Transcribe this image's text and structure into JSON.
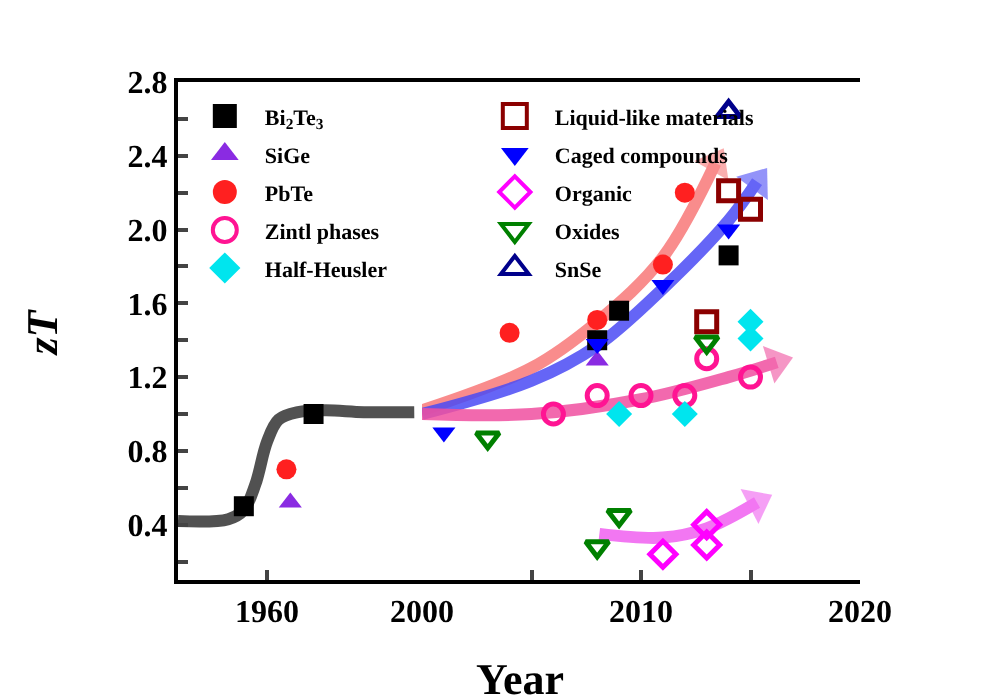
{
  "chart_data": [
    {
      "type": "scatter",
      "ylabel": "zT",
      "xlim": [
        1937,
        2000
      ],
      "xticks": [
        1960,
        2000
      ],
      "ylim": [
        0.1,
        2.8
      ],
      "yticks": [
        {
          "value": 0.2,
          "label": null
        },
        0.4,
        {
          "value": 0.6,
          "label": null
        },
        0.8,
        {
          "value": 1.0,
          "label": null
        },
        1.2,
        {
          "value": 1.4,
          "label": null
        },
        1.6,
        {
          "value": 1.8,
          "label": null
        },
        {
          "value": 2.0,
          "label": "2.0"
        },
        {
          "value": 2.2,
          "label": null
        },
        2.4,
        {
          "value": 2.6,
          "label": null
        },
        2.8
      ],
      "legend": "top left",
      "series": [
        {
          "type": "line",
          "color": "#333333",
          "x": [
            1937,
            1950,
            1954,
            1957,
            1960,
            1963,
            1968,
            1975,
            1985,
            1998
          ],
          "values": [
            0.42,
            0.43,
            0.48,
            0.62,
            0.85,
            0.97,
            1.01,
            1.02,
            1.01,
            1.01
          ]
        },
        {
          "name": "Bi$_{2}$Te$_{3}$",
          "color": "#000000",
          "marker": "square",
          "x": [
            1954,
            1972
          ],
          "values": [
            0.5,
            1.0
          ]
        },
        {
          "name": "SiGe",
          "color": "#8a2be2",
          "marker": "triangle",
          "x": [
            1966
          ],
          "values": [
            0.52
          ]
        },
        {
          "name": "PbTe",
          "color": "#ff2020",
          "marker": "circle",
          "x": [
            1965
          ],
          "values": [
            0.7
          ]
        }
      ]
    },
    {
      "type": "scatter",
      "xlabel": "Year",
      "xlim": [
        2000,
        2020
      ],
      "xticks": [
        {
          "value": 2005,
          "label": null
        },
        2010,
        {
          "value": 2015,
          "label": null
        },
        2020
      ],
      "ylim": [
        0.1,
        2.8
      ],
      "tick_labels": "x",
      "legend": "top left",
      "series": [
        {
          "type": "line",
          "color": "#f87878",
          "x": [
            2000,
            2005,
            2008,
            2011,
            2013.4
          ],
          "values": [
            1.02,
            1.25,
            1.5,
            1.85,
            2.36
          ]
        },
        {
          "type": "line",
          "color": "#4b4bf5",
          "x": [
            2000,
            2005,
            2008,
            2011,
            2014,
            2015.3
          ],
          "values": [
            1.0,
            1.18,
            1.37,
            1.68,
            2.05,
            2.26
          ]
        },
        {
          "type": "line",
          "color": "#f050a0",
          "x": [
            2000,
            2005,
            2010,
            2014,
            2016.2
          ],
          "values": [
            1.0,
            1.0,
            1.08,
            1.2,
            1.28
          ]
        },
        {
          "type": "line",
          "color": "#f060f0",
          "x": [
            2008.1,
            2011,
            2013,
            2015.3
          ],
          "values": [
            0.35,
            0.33,
            0.38,
            0.52
          ]
        },
        {
          "name": "Bi$_{2}$Te$_{3}$",
          "color": "#000000",
          "marker": "square",
          "x": [
            2008,
            2009,
            2014
          ],
          "values": [
            1.4,
            1.56,
            1.86
          ]
        },
        {
          "name": "Liquid-like materials",
          "color": "#8b0000",
          "marker": "square-open",
          "x": [
            2013,
            2014,
            2015
          ],
          "values": [
            1.5,
            2.21,
            2.11
          ]
        },
        {
          "name": "SiGe",
          "color": "#8a2be2",
          "marker": "triangle",
          "x": [
            2008
          ],
          "values": [
            1.29
          ]
        },
        {
          "name": "Caged compounds",
          "color": "#0000ff",
          "marker": "triangle-down",
          "x": [
            2001,
            2008,
            2011,
            2014
          ],
          "values": [
            0.9,
            1.38,
            1.7,
            2.0
          ]
        },
        {
          "name": "PbTe",
          "color": "#ff2020",
          "marker": "circle",
          "x": [
            2004,
            2008,
            2011,
            2012
          ],
          "values": [
            1.44,
            1.51,
            1.81,
            2.2
          ]
        },
        {
          "name": "Organic",
          "color": "#ff00ff",
          "marker": "diamond-open",
          "x": [
            2011,
            2013,
            2013
          ],
          "values": [
            0.24,
            0.4,
            0.29
          ]
        },
        {
          "name": "Zintl phases",
          "color": "#ff1493",
          "marker": "circle-open",
          "x": [
            2006,
            2008,
            2010,
            2012,
            2013,
            2015
          ],
          "values": [
            1.0,
            1.1,
            1.1,
            1.1,
            1.3,
            1.2
          ]
        },
        {
          "name": "Oxides",
          "color": "#008000",
          "marker": "triangle-down-open",
          "x": [
            2003,
            2008,
            2009,
            2013
          ],
          "values": [
            0.87,
            0.28,
            0.45,
            1.39
          ]
        },
        {
          "name": "Half-Heusler",
          "color": "#00e5ee",
          "marker": "diamond",
          "x": [
            2009,
            2012,
            2015,
            2015
          ],
          "values": [
            1.0,
            1.0,
            1.5,
            1.41
          ]
        },
        {
          "name": "SnSe",
          "color": "#00008b",
          "marker": "triangle-open",
          "x": [
            2014
          ],
          "values": [
            2.64
          ]
        }
      ]
    }
  ]
}
